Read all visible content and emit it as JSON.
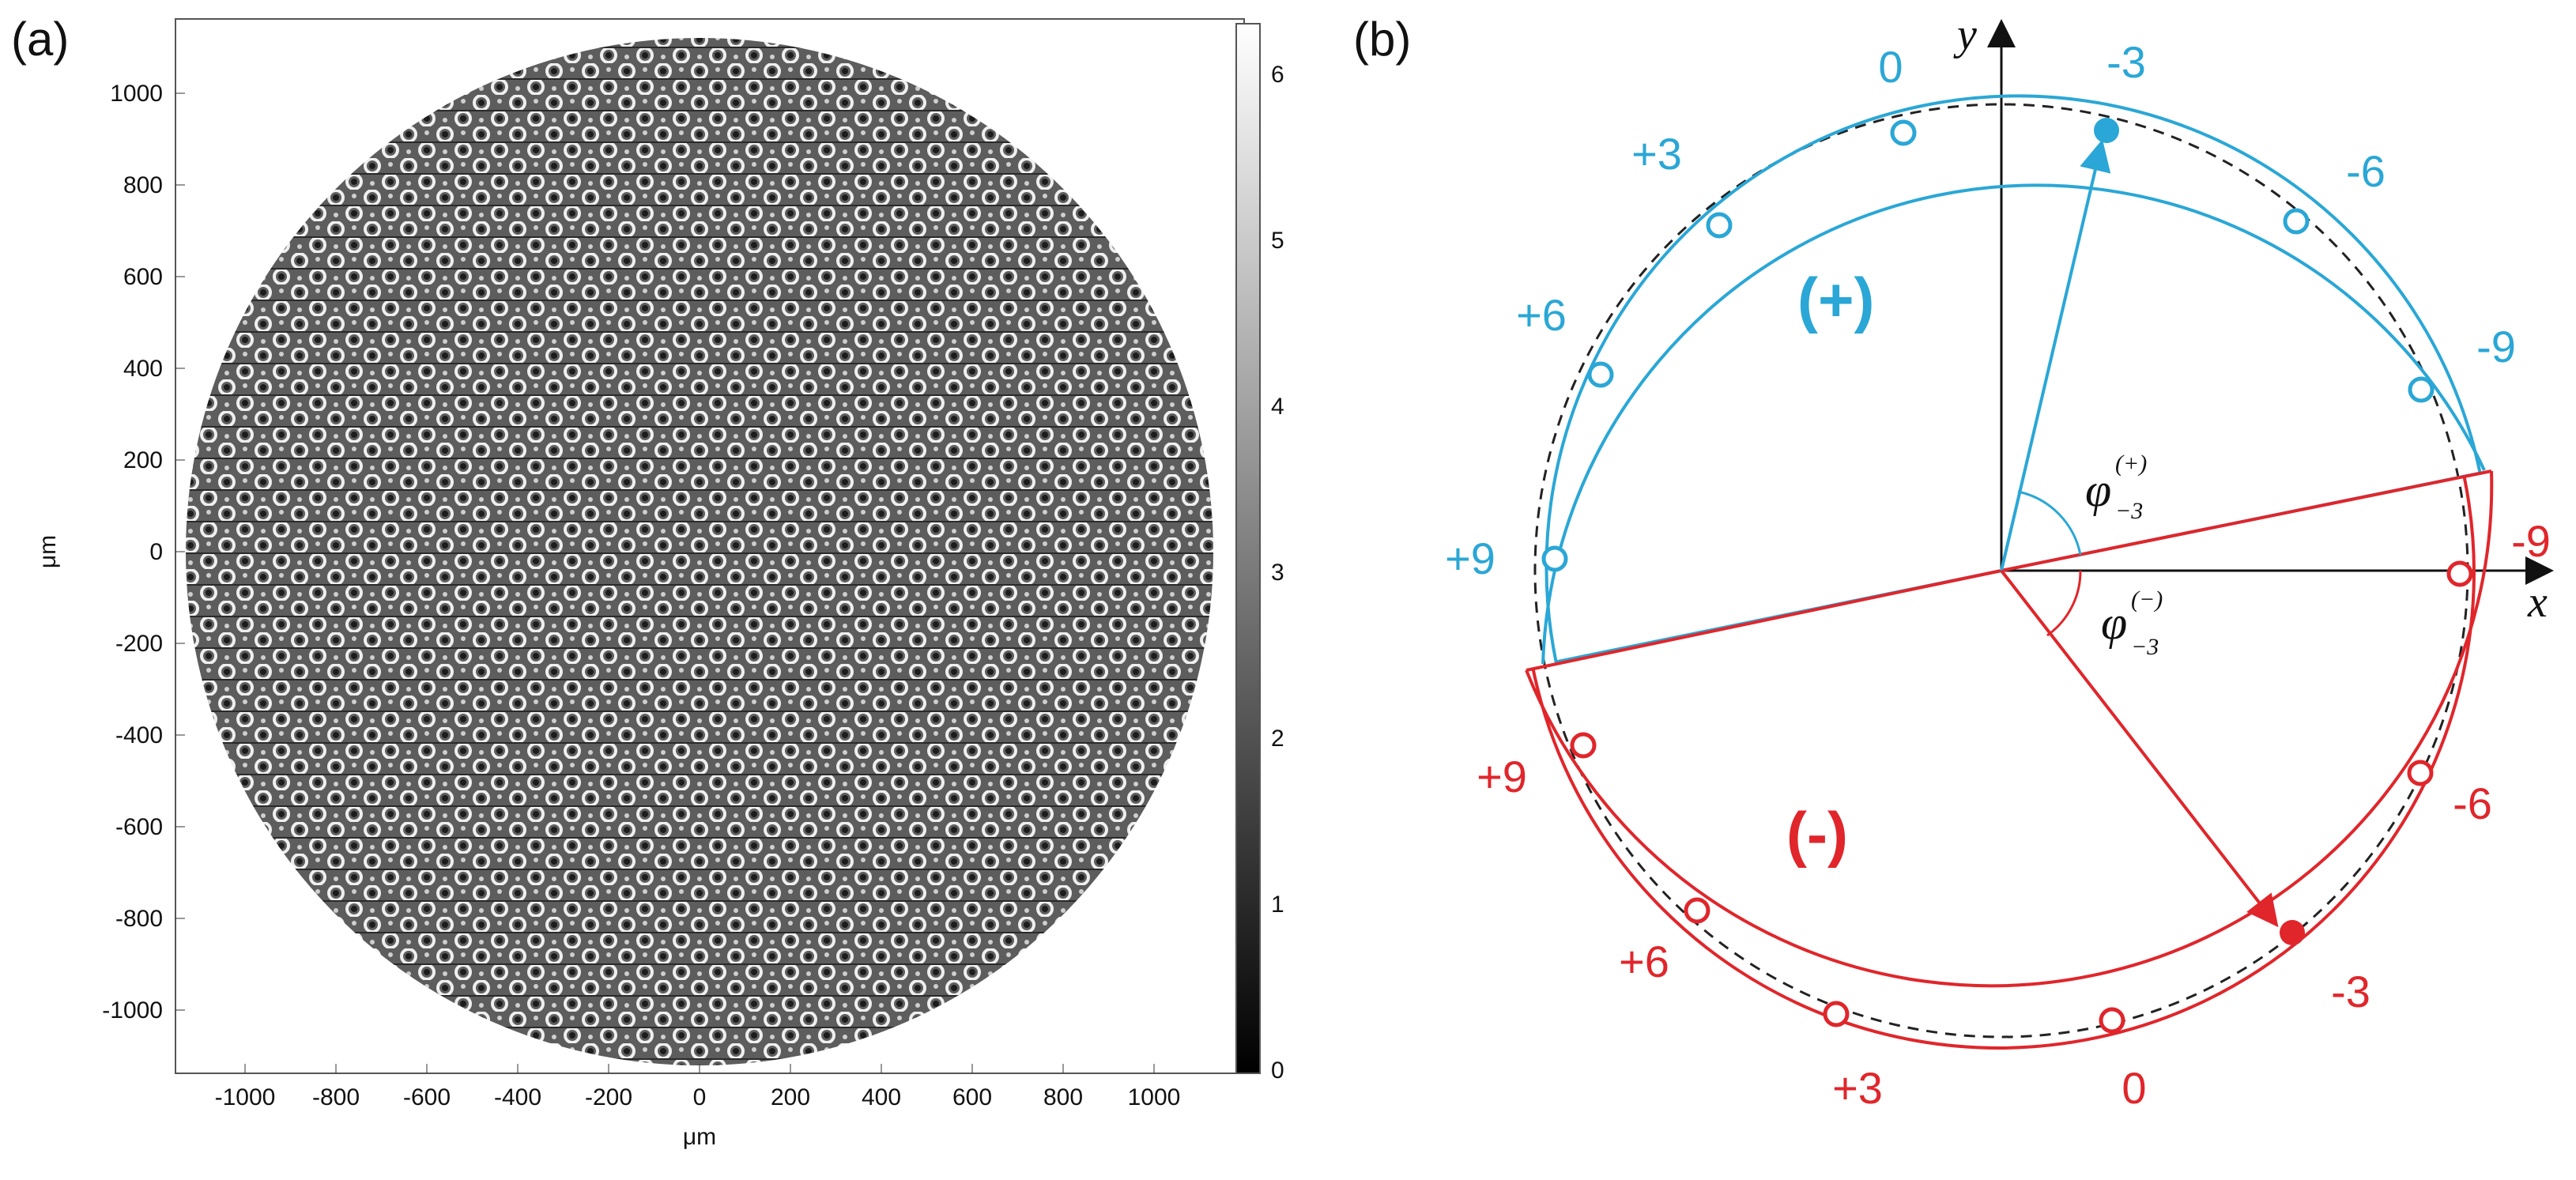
{
  "figure": {
    "panel_a": {
      "label": "(a)",
      "xlabel": "μm",
      "ylabel": "μm",
      "x_ticks": [
        "-1000",
        "-800",
        "-600",
        "-400",
        "-200",
        "0",
        "200",
        "400",
        "600",
        "800",
        "1000"
      ],
      "y_ticks": [
        "1000",
        "800",
        "600",
        "400",
        "200",
        "0",
        "-200",
        "-400",
        "-600",
        "-800",
        "-1000"
      ],
      "colorbar_ticks": [
        "6",
        "5",
        "4",
        "3",
        "2",
        "1",
        "0"
      ],
      "colormap": "grayscale",
      "content": "circular phase pattern"
    },
    "panel_b": {
      "label": "(b)",
      "x_axis": "x",
      "y_axis": "y",
      "upper_region_sign": "(+)",
      "lower_region_sign": "(-)",
      "phi_symbol": "φ",
      "phi_subscript": "−3",
      "phi_plus_superscript": "(+)",
      "phi_minus_superscript": "(−)",
      "upper_orders": [
        "0",
        "-3",
        "+3",
        "-6",
        "+6",
        "-9",
        "+9"
      ],
      "lower_orders": [
        "-9",
        "+9",
        "-6",
        "+6",
        "-3",
        "+3",
        "0"
      ],
      "colors": {
        "upper": "#2aa7d6",
        "lower": "#e0262b",
        "axes": "#111111"
      }
    }
  }
}
